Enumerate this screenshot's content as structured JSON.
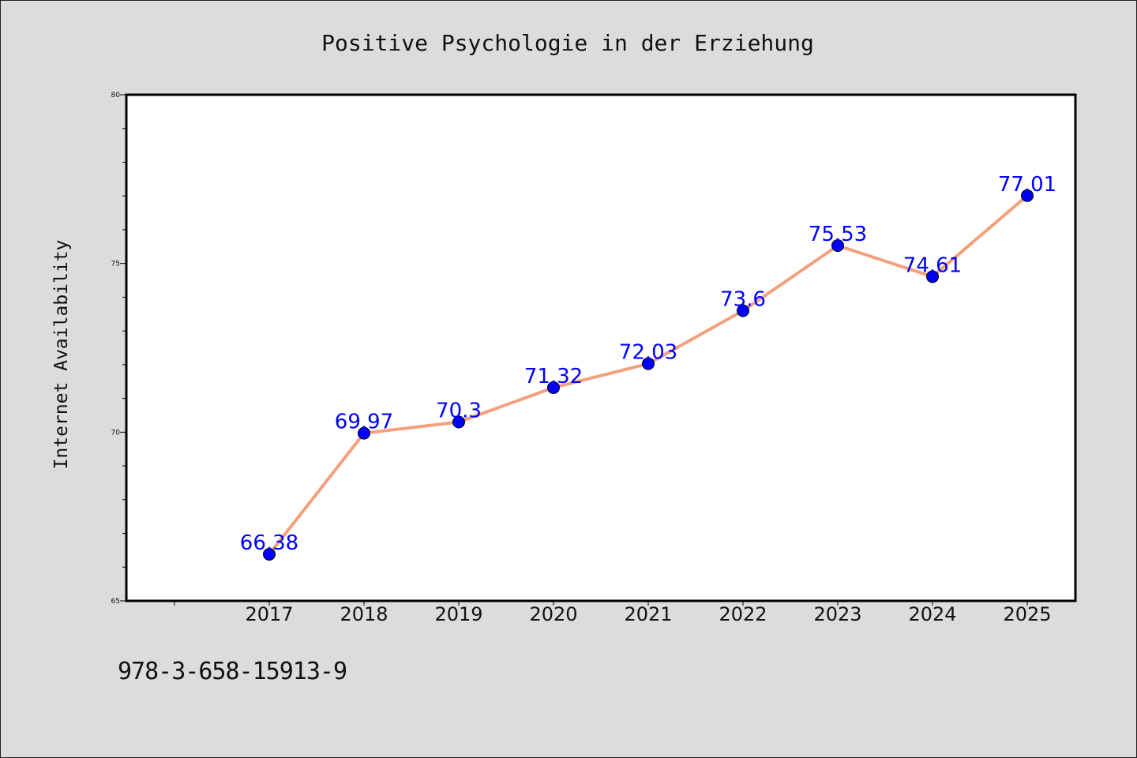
{
  "chart_data": {
    "type": "line",
    "title": "Positive Psychologie in der Erziehung",
    "xlabel": "",
    "ylabel": "Internet Availability",
    "x": [
      "2017",
      "2018",
      "2019",
      "2020",
      "2021",
      "2022",
      "2023",
      "2024",
      "2025"
    ],
    "series": [
      {
        "values": [
          66.38,
          69.97,
          70.3,
          71.32,
          72.03,
          73.6,
          75.53,
          74.61,
          77.01
        ],
        "data_labels": [
          "66.38",
          "69.97",
          "70.3",
          "71.32",
          "72.03",
          "73.6",
          "75.53",
          "74.61",
          "77.01"
        ],
        "line_color": "#f4a07c",
        "marker_color": "#0000ff"
      }
    ],
    "ylim": [
      65,
      80
    ],
    "yticks": [
      65,
      70,
      75,
      80
    ],
    "ytick_labels": [
      "65",
      "70",
      "75",
      "80"
    ],
    "grid": false,
    "legend": "none"
  },
  "footer": {
    "isbn": "978-3-658-15913-9"
  }
}
